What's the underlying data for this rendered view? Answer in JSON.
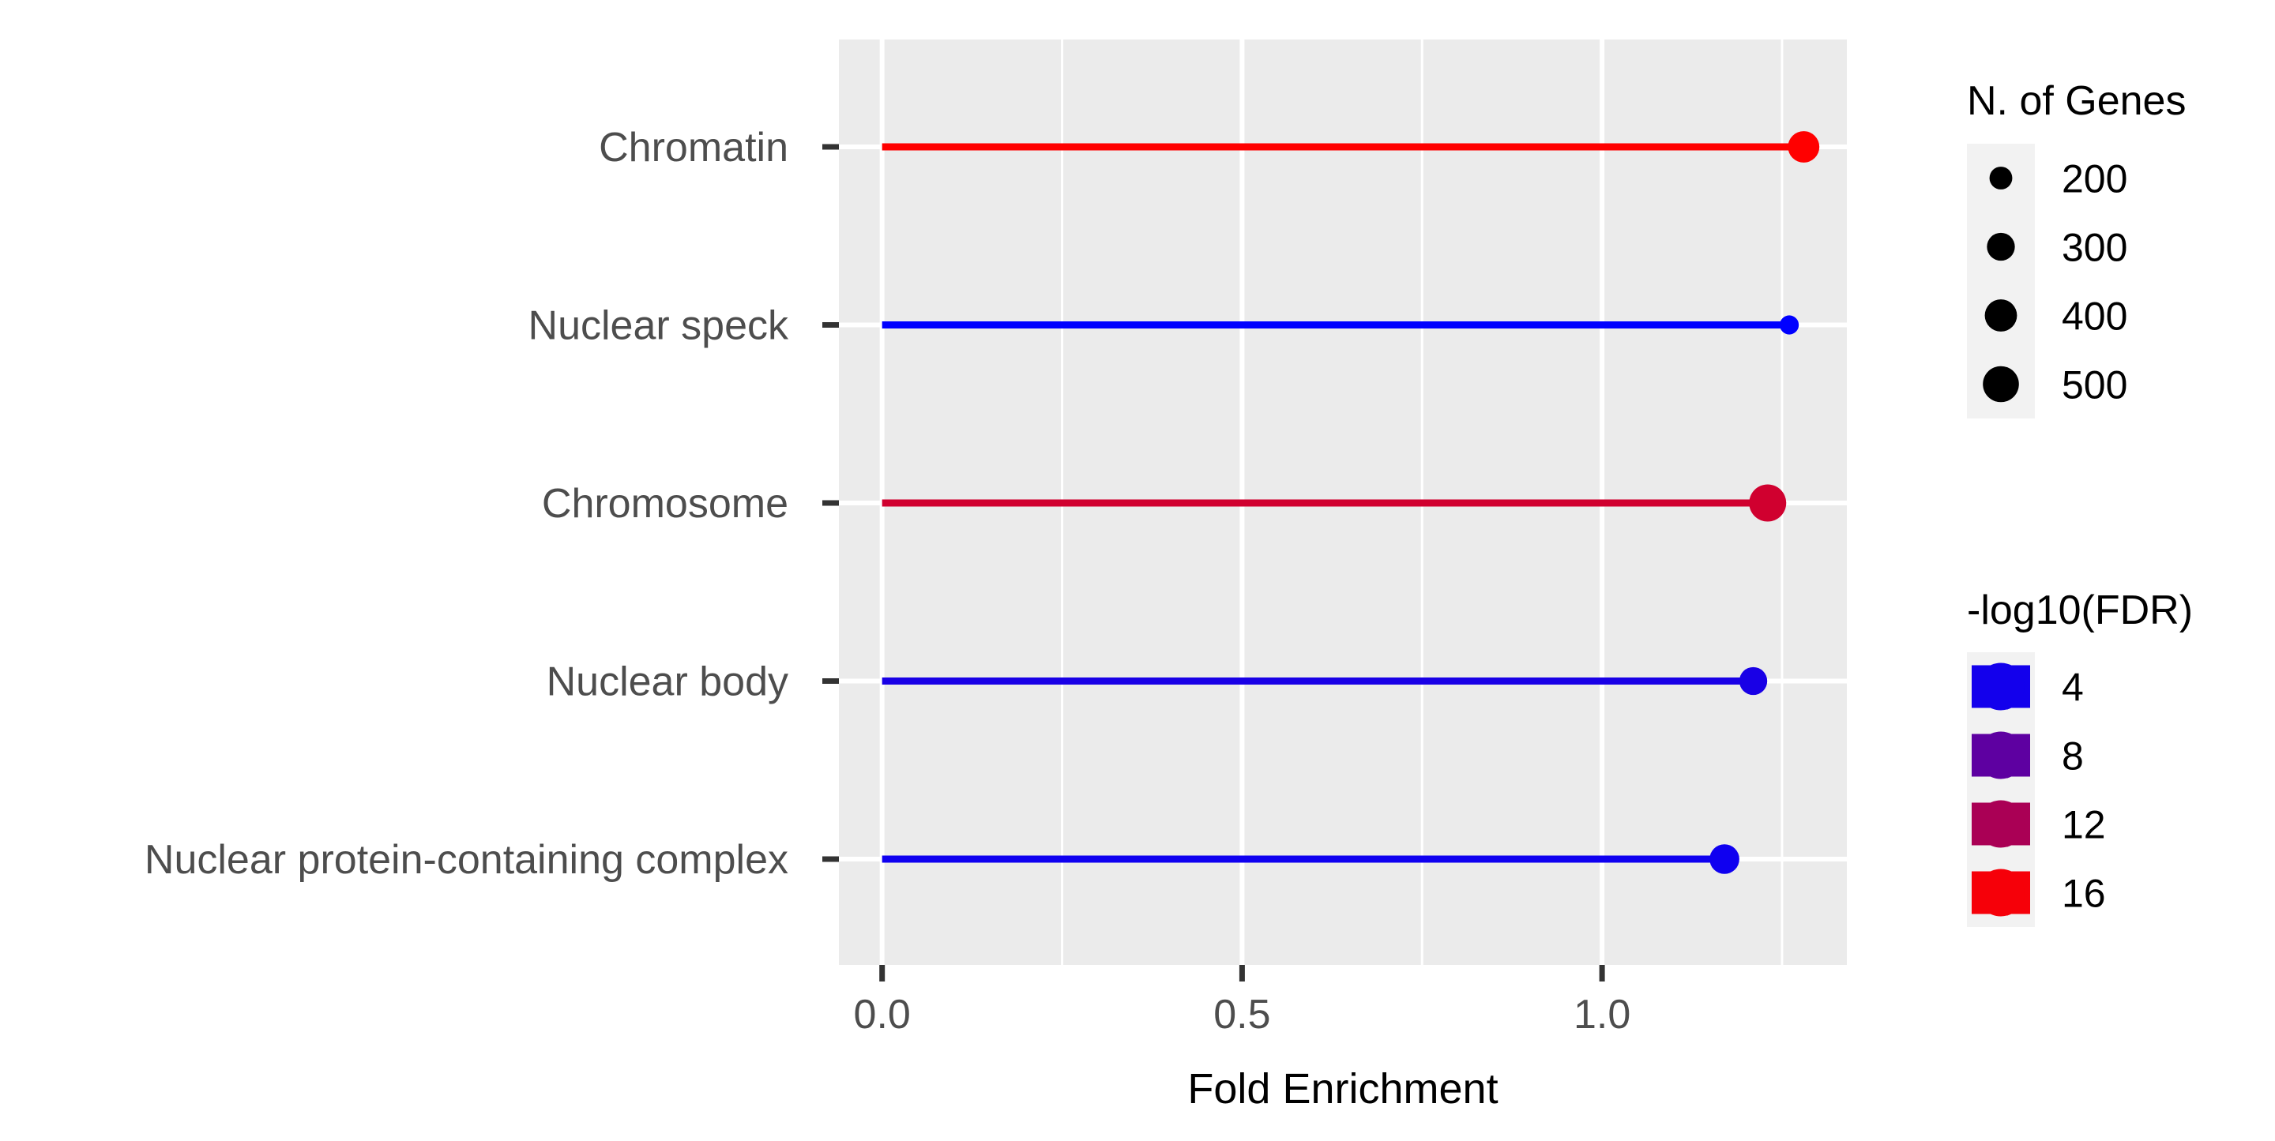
{
  "chart_data": {
    "type": "lollipop",
    "title": "",
    "xlabel": "Fold Enrichment",
    "ylabel": "",
    "xlim": [
      -0.06,
      1.34
    ],
    "x_ticks": [
      0.0,
      0.5,
      1.0
    ],
    "x_tick_labels": [
      "0.0",
      "0.5",
      "1.0"
    ],
    "x_minor_ticks": [
      0.25,
      0.75,
      1.25
    ],
    "grid": true,
    "categories": [
      "Chromatin",
      "Nuclear speck",
      "Chromosome",
      "Nuclear body",
      "Nuclear protein-containing complex"
    ],
    "fold_enrichment": [
      1.28,
      1.26,
      1.23,
      1.21,
      1.17
    ],
    "n_genes": [
      380,
      140,
      530,
      300,
      340
    ],
    "neg_log10_fdr": [
      16.5,
      3,
      14,
      4.3,
      3.8
    ],
    "size_legend": {
      "title": "N. of Genes",
      "breaks": [
        200,
        300,
        400,
        500
      ],
      "labels": [
        "200",
        "300",
        "400",
        "500"
      ]
    },
    "color_legend": {
      "title": "-log10(FDR)",
      "breaks": [
        4,
        8,
        12,
        16
      ],
      "labels": [
        "4",
        "8",
        "12",
        "16"
      ],
      "low_color": "#0000FF",
      "high_color": "#FF0000"
    },
    "panel_background": "#EBEBEB",
    "gridline_color": "#FFFFFF",
    "legend_position": "right"
  }
}
